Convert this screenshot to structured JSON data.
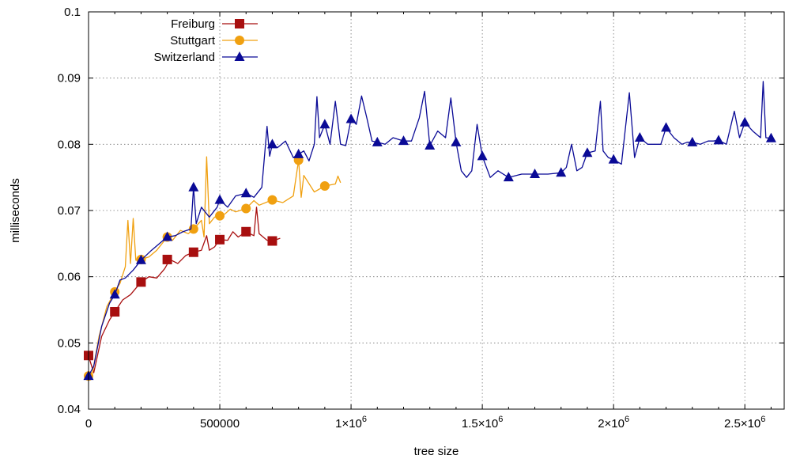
{
  "chart_data": {
    "type": "line",
    "title": "",
    "xlabel": "tree size",
    "ylabel": "milliseconds",
    "xlim": [
      0,
      2650000
    ],
    "ylim": [
      0.04,
      0.1
    ],
    "grid": true,
    "legend_position": "top-left",
    "x_ticks": [
      {
        "value": 0,
        "base": "0",
        "exp": ""
      },
      {
        "value": 500000,
        "base": "500000",
        "exp": ""
      },
      {
        "value": 1000000,
        "base": "1×10",
        "exp": "6"
      },
      {
        "value": 1500000,
        "base": "1.5×10",
        "exp": "6"
      },
      {
        "value": 2000000,
        "base": "2×10",
        "exp": "6"
      },
      {
        "value": 2500000,
        "base": "2.5×10",
        "exp": "6"
      }
    ],
    "y_ticks": [
      {
        "value": 0.04,
        "label": "0.04"
      },
      {
        "value": 0.05,
        "label": "0.05"
      },
      {
        "value": 0.06,
        "label": "0.06"
      },
      {
        "value": 0.07,
        "label": "0.07"
      },
      {
        "value": 0.08,
        "label": "0.08"
      },
      {
        "value": 0.09,
        "label": "0.09"
      },
      {
        "value": 0.1,
        "label": "0.1"
      }
    ],
    "series": [
      {
        "name": "Freiburg",
        "color": "#a80f0f",
        "marker": "square",
        "x": [
          0,
          20000,
          50000,
          80000,
          100000,
          130000,
          160000,
          200000,
          230000,
          260000,
          290000,
          310000,
          340000,
          370000,
          400000,
          430000,
          450000,
          460000,
          480000,
          500000,
          530000,
          550000,
          570000,
          600000,
          630000,
          640000,
          650000,
          680000,
          700000,
          730000
        ],
        "y": [
          0.048,
          0.0455,
          0.051,
          0.0535,
          0.0547,
          0.0565,
          0.0573,
          0.0592,
          0.06,
          0.0598,
          0.0612,
          0.0626,
          0.062,
          0.0632,
          0.0637,
          0.064,
          0.0662,
          0.064,
          0.0645,
          0.0656,
          0.0655,
          0.0668,
          0.066,
          0.0668,
          0.0662,
          0.0705,
          0.0665,
          0.0655,
          0.0654,
          0.0658
        ],
        "marker_x": [
          0,
          100000,
          200000,
          300000,
          400000,
          500000,
          600000,
          700000
        ],
        "marker_y": [
          0.0481,
          0.0547,
          0.0592,
          0.0626,
          0.0637,
          0.0656,
          0.0668,
          0.0654
        ]
      },
      {
        "name": "Stuttgart",
        "color": "#f0a010",
        "marker": "circle",
        "x": [
          0,
          15000,
          40000,
          70000,
          100000,
          120000,
          140000,
          150000,
          160000,
          170000,
          180000,
          200000,
          230000,
          260000,
          300000,
          320000,
          350000,
          380000,
          400000,
          430000,
          440000,
          450000,
          460000,
          480000,
          500000,
          520000,
          540000,
          560000,
          600000,
          630000,
          650000,
          700000,
          740000,
          780000,
          800000,
          810000,
          820000,
          860000,
          900000,
          940000,
          950000,
          960000
        ],
        "y": [
          0.045,
          0.0455,
          0.051,
          0.0555,
          0.0577,
          0.059,
          0.0615,
          0.0685,
          0.062,
          0.0688,
          0.0625,
          0.0626,
          0.063,
          0.064,
          0.066,
          0.0655,
          0.067,
          0.0665,
          0.0672,
          0.0685,
          0.066,
          0.0781,
          0.068,
          0.069,
          0.0692,
          0.0695,
          0.0702,
          0.0698,
          0.0703,
          0.0715,
          0.0708,
          0.0716,
          0.0712,
          0.0722,
          0.0776,
          0.072,
          0.0753,
          0.0728,
          0.0737,
          0.074,
          0.0752,
          0.0742
        ],
        "marker_x": [
          0,
          100000,
          200000,
          300000,
          400000,
          500000,
          600000,
          700000,
          800000,
          900000
        ],
        "marker_y": [
          0.045,
          0.0577,
          0.0626,
          0.066,
          0.0672,
          0.0692,
          0.0703,
          0.0716,
          0.0776,
          0.0737
        ]
      },
      {
        "name": "Switzerland",
        "color": "#0a0a96",
        "marker": "triangle",
        "x": [
          0,
          20000,
          50000,
          80000,
          100000,
          120000,
          140000,
          170000,
          200000,
          240000,
          270000,
          300000,
          330000,
          360000,
          390000,
          400000,
          410000,
          430000,
          460000,
          490000,
          500000,
          530000,
          560000,
          600000,
          630000,
          660000,
          680000,
          690000,
          700000,
          720000,
          750000,
          780000,
          800000,
          820000,
          840000,
          860000,
          870000,
          880000,
          900000,
          920000,
          940000,
          960000,
          980000,
          1000000,
          1020000,
          1040000,
          1060000,
          1080000,
          1100000,
          1130000,
          1160000,
          1200000,
          1230000,
          1260000,
          1280000,
          1300000,
          1330000,
          1360000,
          1380000,
          1400000,
          1420000,
          1440000,
          1460000,
          1480000,
          1500000,
          1530000,
          1560000,
          1600000,
          1650000,
          1700000,
          1750000,
          1800000,
          1820000,
          1840000,
          1860000,
          1880000,
          1900000,
          1930000,
          1950000,
          1960000,
          1980000,
          2000000,
          2030000,
          2060000,
          2080000,
          2100000,
          2130000,
          2160000,
          2180000,
          2200000,
          2230000,
          2260000,
          2280000,
          2300000,
          2330000,
          2360000,
          2380000,
          2400000,
          2430000,
          2460000,
          2480000,
          2500000,
          2530000,
          2560000,
          2570000,
          2580000,
          2600000
        ],
        "y": [
          0.045,
          0.0465,
          0.0525,
          0.056,
          0.0573,
          0.0595,
          0.0598,
          0.061,
          0.0625,
          0.064,
          0.065,
          0.066,
          0.0662,
          0.0668,
          0.0672,
          0.0735,
          0.068,
          0.0705,
          0.069,
          0.0705,
          0.0716,
          0.0705,
          0.0722,
          0.0726,
          0.072,
          0.0735,
          0.0827,
          0.0782,
          0.08,
          0.0795,
          0.0805,
          0.078,
          0.0785,
          0.079,
          0.0775,
          0.08,
          0.0872,
          0.081,
          0.083,
          0.08,
          0.0865,
          0.08,
          0.0798,
          0.0838,
          0.083,
          0.0873,
          0.084,
          0.0805,
          0.0803,
          0.08,
          0.081,
          0.0805,
          0.0805,
          0.084,
          0.088,
          0.0798,
          0.082,
          0.081,
          0.087,
          0.0803,
          0.076,
          0.075,
          0.076,
          0.083,
          0.0782,
          0.075,
          0.076,
          0.075,
          0.0755,
          0.0755,
          0.0755,
          0.0757,
          0.0765,
          0.08,
          0.076,
          0.0765,
          0.0787,
          0.079,
          0.0865,
          0.079,
          0.078,
          0.0777,
          0.077,
          0.0878,
          0.078,
          0.081,
          0.08,
          0.08,
          0.08,
          0.0825,
          0.081,
          0.08,
          0.0803,
          0.0803,
          0.08,
          0.0805,
          0.0805,
          0.0806,
          0.08,
          0.085,
          0.081,
          0.0833,
          0.082,
          0.081,
          0.0895,
          0.081,
          0.0809
        ],
        "marker_x": [
          0,
          100000,
          200000,
          300000,
          400000,
          500000,
          600000,
          700000,
          800000,
          900000,
          1000000,
          1100000,
          1200000,
          1300000,
          1400000,
          1500000,
          1600000,
          1700000,
          1800000,
          1900000,
          2000000,
          2100000,
          2200000,
          2300000,
          2400000,
          2500000,
          2600000
        ],
        "marker_y": [
          0.045,
          0.0573,
          0.0625,
          0.066,
          0.0735,
          0.0716,
          0.0726,
          0.08,
          0.0785,
          0.083,
          0.0838,
          0.0803,
          0.0805,
          0.0798,
          0.0803,
          0.0782,
          0.075,
          0.0755,
          0.0757,
          0.0787,
          0.0777,
          0.081,
          0.0825,
          0.0803,
          0.0806,
          0.0833,
          0.0809
        ]
      }
    ]
  }
}
